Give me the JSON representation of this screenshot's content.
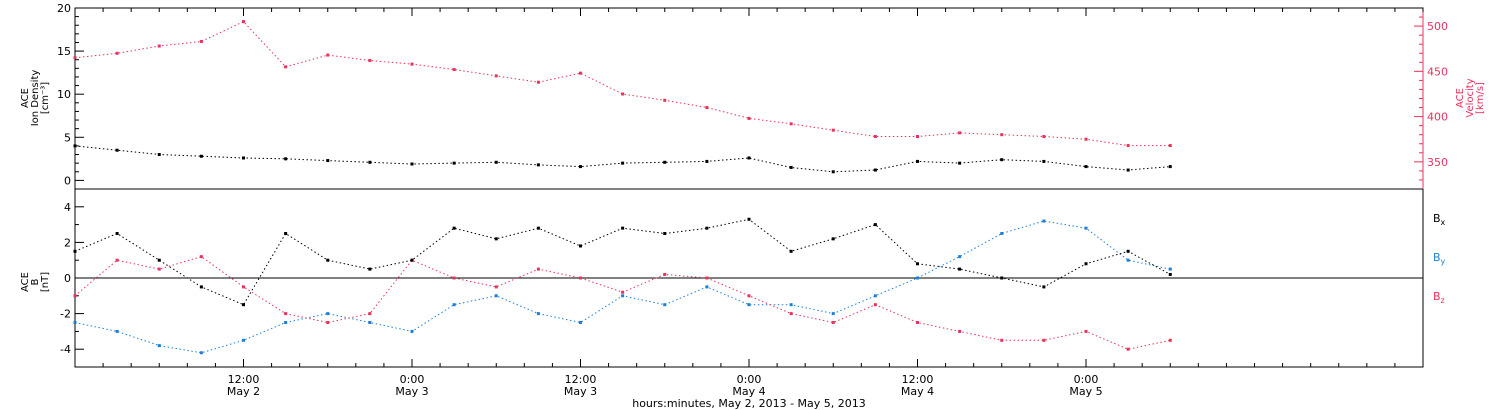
{
  "colors": {
    "density": "#000000",
    "velocity": "#e8335e",
    "bx": "#000000",
    "by": "#1e7fd6",
    "bz": "#e8335e"
  },
  "xaxis": {
    "title": "hours:minutes, May  2, 2013 - May  5, 2013",
    "hours_range": [
      0,
      96
    ],
    "ticks": [
      {
        "time": "12:00",
        "date": "May 2",
        "hour": 12
      },
      {
        "time": "0:00",
        "date": "May 3",
        "hour": 24
      },
      {
        "time": "12:00",
        "date": "May 3",
        "hour": 36
      },
      {
        "time": "0:00",
        "date": "May 4",
        "hour": 48
      },
      {
        "time": "12:00",
        "date": "May 4",
        "hour": 60
      },
      {
        "time": "0:00",
        "date": "May 5",
        "hour": 72
      }
    ]
  },
  "chart_data": [
    {
      "type": "scatter",
      "panel": "top",
      "ylabel_left": [
        "ACE",
        "Ion Density",
        "[cm⁻³]"
      ],
      "ylabel_right": [
        "ACE",
        "Velocity",
        "[km/s]"
      ],
      "ylim_left": [
        -1,
        20
      ],
      "ylim_right": [
        320,
        520
      ],
      "yticks_left": [
        "0",
        "5",
        "10",
        "15",
        "20"
      ],
      "yticks_right": [
        "350",
        "400",
        "450",
        "500"
      ],
      "series": [
        {
          "axis": "left",
          "x_hours": [
            0,
            3,
            6,
            9,
            12,
            15,
            18,
            21,
            24,
            27,
            30,
            33,
            36,
            39,
            42,
            45,
            48,
            51,
            54,
            57,
            60,
            63,
            66,
            69,
            72,
            75,
            78
          ],
          "y": [
            4.0,
            3.5,
            3.0,
            2.8,
            2.6,
            2.5,
            2.3,
            2.1,
            1.9,
            2.0,
            2.1,
            1.8,
            1.6,
            2.0,
            2.1,
            2.2,
            2.6,
            1.5,
            1.0,
            1.2,
            2.2,
            2.0,
            2.4,
            2.2,
            1.6,
            1.2,
            1.6
          ]
        },
        {
          "axis": "right",
          "x_hours": [
            0,
            3,
            6,
            9,
            12,
            15,
            18,
            21,
            24,
            27,
            30,
            33,
            36,
            39,
            42,
            45,
            48,
            51,
            54,
            57,
            60,
            63,
            66,
            69,
            72,
            75,
            78
          ],
          "y": [
            465,
            470,
            478,
            483,
            505,
            455,
            468,
            462,
            458,
            452,
            445,
            438,
            448,
            425,
            418,
            410,
            398,
            392,
            385,
            378,
            378,
            382,
            380,
            378,
            375,
            368,
            368
          ]
        }
      ]
    },
    {
      "type": "scatter",
      "panel": "bottom",
      "ylabel_left": [
        "ACE",
        "B",
        "[nT]"
      ],
      "ylim": [
        -5,
        5
      ],
      "yticks": [
        "-4",
        "-2",
        "0",
        "2",
        "4"
      ],
      "series": [
        {
          "name": "Bx",
          "x_hours": [
            0,
            3,
            6,
            9,
            12,
            15,
            18,
            21,
            24,
            27,
            30,
            33,
            36,
            39,
            42,
            45,
            48,
            51,
            54,
            57,
            60,
            63,
            66,
            69,
            72,
            75,
            78
          ],
          "y": [
            1.5,
            2.5,
            1.0,
            -0.5,
            -1.5,
            2.5,
            1.0,
            0.5,
            1.0,
            2.8,
            2.2,
            2.8,
            1.8,
            2.8,
            2.5,
            2.8,
            3.3,
            1.5,
            2.2,
            3.0,
            0.8,
            0.5,
            0.0,
            -0.5,
            0.8,
            1.5,
            0.2
          ]
        },
        {
          "name": "By",
          "x_hours": [
            0,
            3,
            6,
            9,
            12,
            15,
            18,
            21,
            24,
            27,
            30,
            33,
            36,
            39,
            42,
            45,
            48,
            51,
            54,
            57,
            60,
            63,
            66,
            69,
            72,
            75,
            78
          ],
          "y": [
            -2.5,
            -3.0,
            -3.8,
            -4.2,
            -3.5,
            -2.5,
            -2.0,
            -2.5,
            -3.0,
            -1.5,
            -1.0,
            -2.0,
            -2.5,
            -1.0,
            -1.5,
            -0.5,
            -1.5,
            -1.5,
            -2.0,
            -1.0,
            0.0,
            1.2,
            2.5,
            3.2,
            2.8,
            1.0,
            0.5
          ]
        },
        {
          "name": "Bz",
          "x_hours": [
            0,
            3,
            6,
            9,
            12,
            15,
            18,
            21,
            24,
            27,
            30,
            33,
            36,
            39,
            42,
            45,
            48,
            51,
            54,
            57,
            60,
            63,
            66,
            69,
            72,
            75,
            78
          ],
          "y": [
            -1.0,
            1.0,
            0.5,
            1.2,
            -0.5,
            -2.0,
            -2.5,
            -2.0,
            1.0,
            0.0,
            -0.5,
            0.5,
            0.0,
            -0.8,
            0.2,
            0.0,
            -1.0,
            -2.0,
            -2.5,
            -1.5,
            -2.5,
            -3.0,
            -3.5,
            -3.5,
            -3.0,
            -4.0,
            -3.5
          ]
        }
      ]
    }
  ]
}
